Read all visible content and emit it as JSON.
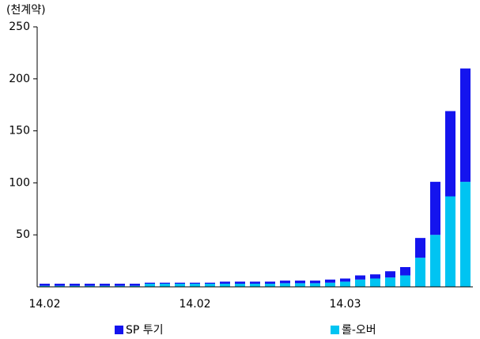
{
  "chart_data": {
    "type": "stacked_bar",
    "y_label": "(천계약)",
    "categories": [
      "14.02",
      null,
      null,
      null,
      null,
      null,
      null,
      null,
      null,
      null,
      "14.02",
      null,
      null,
      null,
      null,
      null,
      null,
      null,
      null,
      null,
      "14.03",
      null,
      null,
      null,
      null,
      null,
      null,
      null,
      null
    ],
    "series": [
      {
        "name": "SP 투기",
        "color": "#1414ee",
        "values": [
          2,
          2,
          2,
          2,
          2,
          2,
          2,
          1,
          1,
          1,
          1,
          1,
          2,
          2,
          2,
          2,
          2.5,
          2.5,
          2.5,
          3,
          3,
          4,
          4,
          6,
          8,
          19,
          51,
          82,
          109
        ]
      },
      {
        "name": "롤-오버",
        "color": "#00c4f2",
        "values": [
          1,
          1,
          1,
          1,
          1,
          1,
          1,
          3,
          3,
          3,
          3,
          3,
          3,
          3,
          3,
          3,
          3.5,
          3.5,
          3.5,
          4,
          5,
          7,
          8,
          9,
          11,
          28,
          50,
          87,
          101
        ]
      }
    ],
    "ylim": [
      0,
      250
    ],
    "yticks": [
      50,
      100,
      150,
      200,
      250
    ]
  }
}
